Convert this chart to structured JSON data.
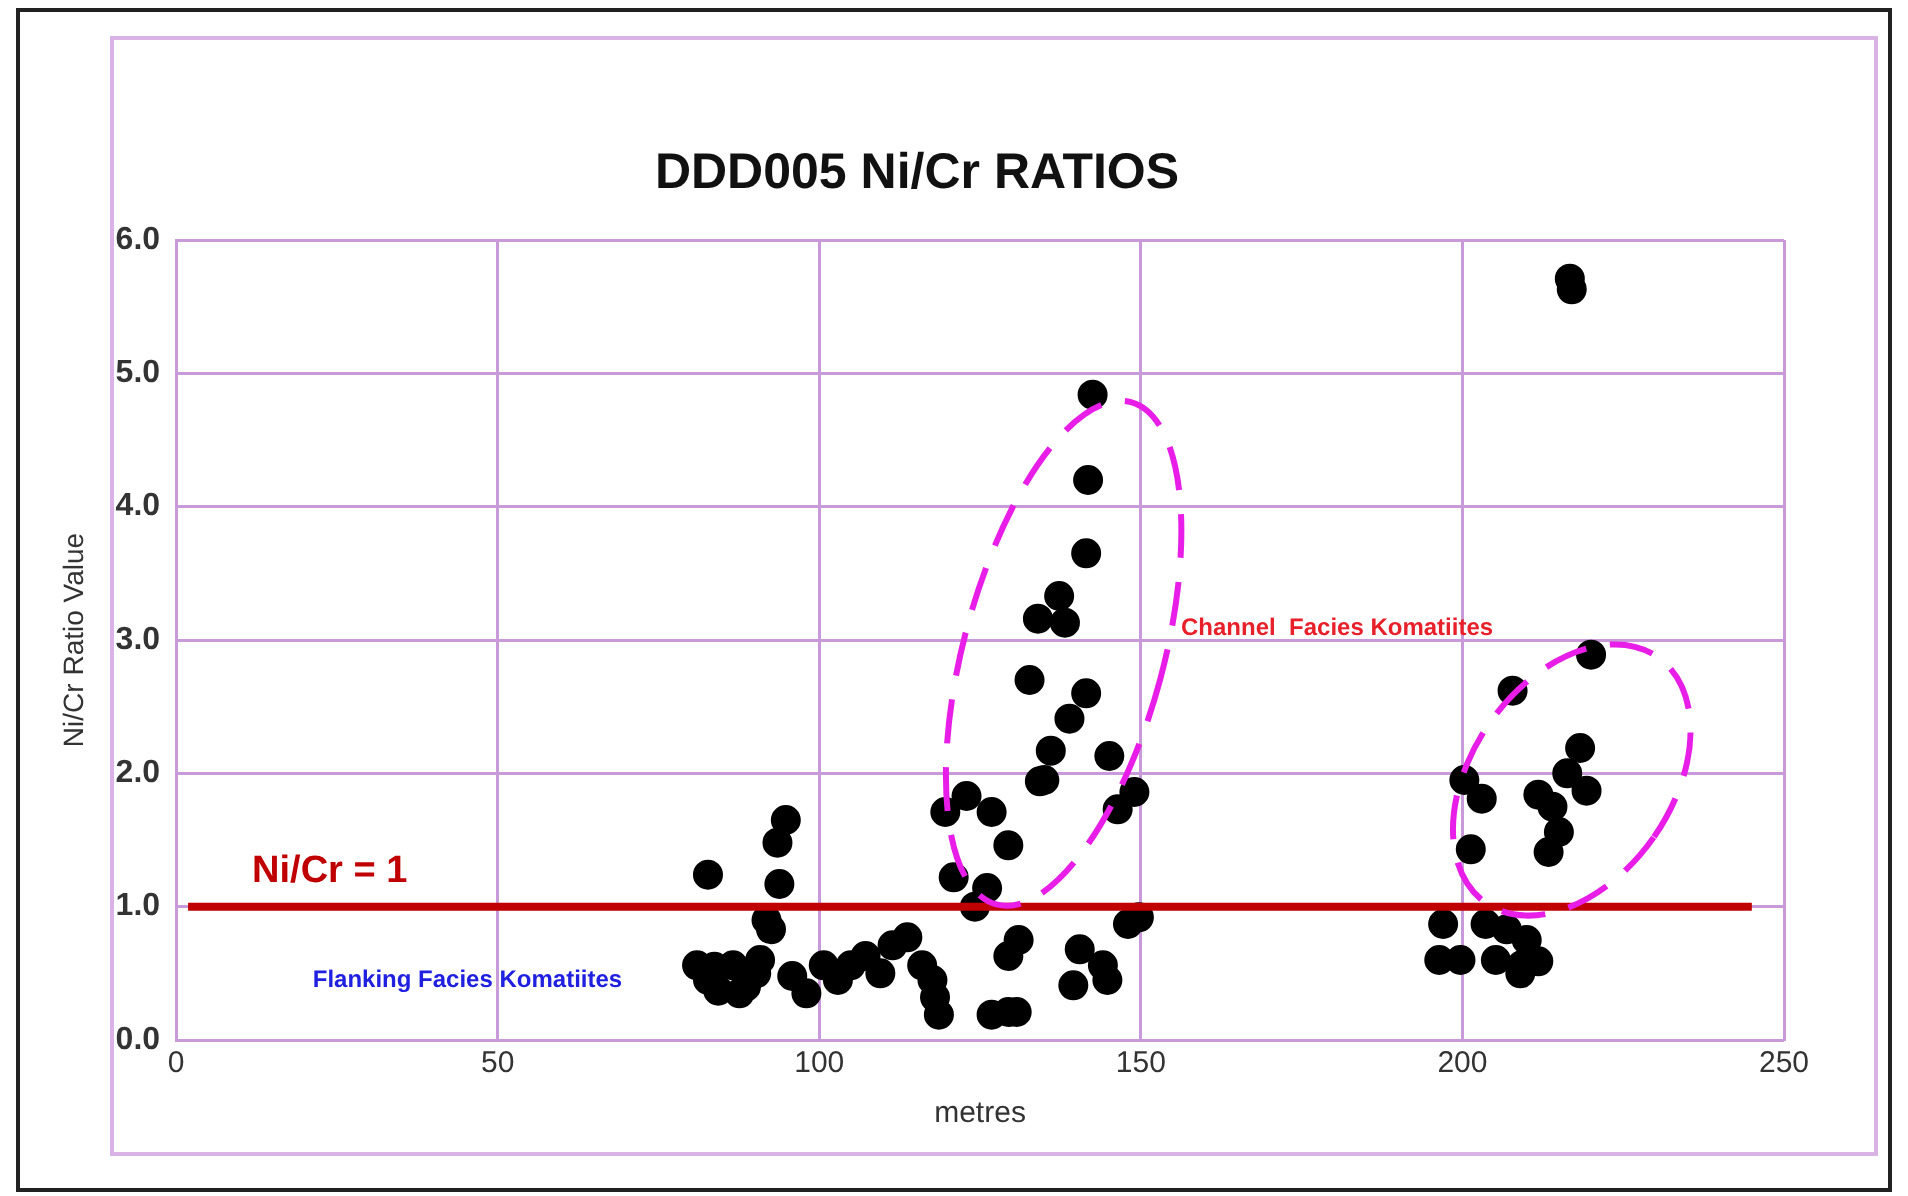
{
  "chart_data": {
    "type": "scatter",
    "title": "DDD005 Ni/Cr RATIOS",
    "xlabel": "metres",
    "ylabel": "Ni/Cr Ratio Value",
    "series": [
      {
        "color": "#000000",
        "x": [
          82.7,
          94.8,
          93.5,
          93.8,
          91.8,
          92.5,
          81,
          82.7,
          84.3,
          86.6,
          88.6,
          90.8,
          90.2,
          87.6,
          83.7,
          95.8,
          98,
          100.7,
          102.9,
          104.9,
          107.2,
          109.5,
          111.4,
          113.7,
          116,
          117.6,
          118,
          118.6,
          119.6,
          122.9,
          126.8,
          129.4,
          120.9,
          124.2,
          126.1,
          131,
          129.4,
          126.8,
          129.4,
          134.3,
          142.5,
          141.8,
          141.5,
          137.3,
          134,
          138.2,
          132.7,
          141.5,
          138.9,
          136,
          145.1,
          135,
          149,
          146.4,
          149.7,
          148,
          140.5,
          144.1,
          144.8,
          139.5,
          130.7,
          217,
          216.7,
          220,
          207.8,
          218.3,
          216.3,
          219.3,
          200.3,
          203,
          211.8,
          214,
          215,
          213.4,
          201.3,
          197,
          203.6,
          206.9,
          210,
          196.4,
          199.7,
          205.2,
          209.2,
          211.8,
          209
        ],
        "values": [
          1.24,
          1.65,
          1.48,
          1.17,
          0.9,
          0.83,
          0.56,
          0.45,
          0.37,
          0.56,
          0.4,
          0.6,
          0.5,
          0.35,
          0.55,
          0.48,
          0.35,
          0.56,
          0.45,
          0.56,
          0.63,
          0.5,
          0.71,
          0.77,
          0.56,
          0.45,
          0.32,
          0.19,
          1.71,
          1.83,
          1.71,
          1.46,
          1.22,
          1.0,
          1.14,
          0.75,
          0.63,
          0.19,
          0.21,
          1.94,
          4.84,
          4.2,
          3.65,
          3.33,
          3.16,
          3.13,
          2.7,
          2.6,
          2.41,
          2.17,
          2.13,
          1.95,
          1.86,
          1.73,
          0.92,
          0.87,
          0.68,
          0.56,
          0.45,
          0.41,
          0.21,
          5.63,
          5.71,
          2.89,
          2.62,
          2.19,
          2,
          1.87,
          1.95,
          1.81,
          1.84,
          1.75,
          1.56,
          1.41,
          1.43,
          0.87,
          0.87,
          0.83,
          0.75,
          0.6,
          0.6,
          0.6,
          0.56,
          0.59,
          0.5
        ]
      }
    ],
    "xlim": [
      0,
      250
    ],
    "xticks": [
      0,
      50,
      100,
      150,
      200,
      250
    ],
    "ylim": [
      0,
      6
    ],
    "yticks": [
      {
        "value": 0,
        "label": "0.0"
      },
      {
        "value": 1,
        "label": "1.0"
      },
      {
        "value": 2,
        "label": "2.0"
      },
      {
        "value": 3,
        "label": "3.0"
      },
      {
        "value": 4,
        "label": "4.0"
      },
      {
        "value": 5,
        "label": "5.0"
      },
      {
        "value": 6,
        "label": "6.0"
      }
    ],
    "ref_lines": [
      {
        "axis": "y",
        "value": 1,
        "label": "Ni/Cr = 1",
        "color": "#c00000"
      }
    ],
    "annotations": [
      "Channel  Facies Komatiites",
      "Flanking Facies Komatiites"
    ],
    "grid": true,
    "marker": "circle",
    "legend": false
  }
}
